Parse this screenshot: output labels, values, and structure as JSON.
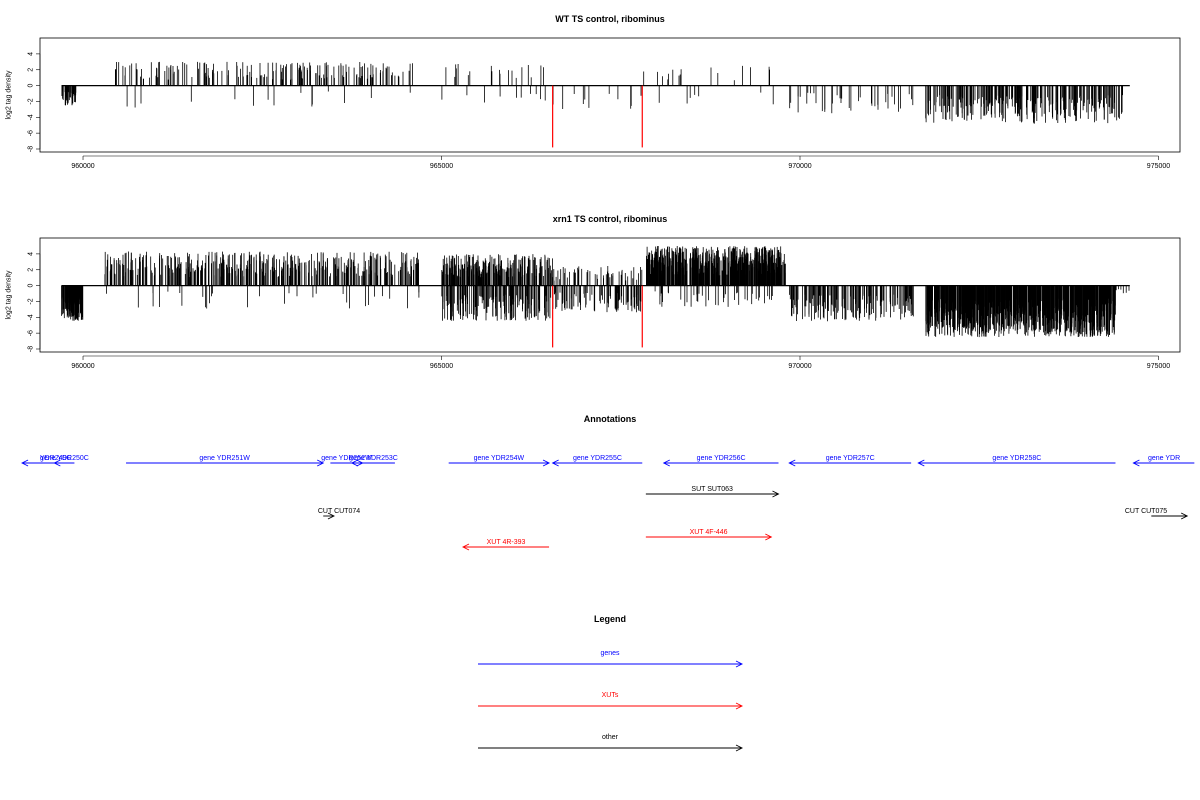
{
  "chart_data": [
    {
      "type": "bar",
      "title": "WT TS control, ribominus",
      "ylabel": "log2 tag density",
      "xlim": [
        959400,
        975300
      ],
      "ylim": [
        -8,
        5.5
      ],
      "yticks": [
        4,
        2,
        0,
        -2,
        -4,
        -6,
        -8
      ],
      "xticks": [
        960000,
        965000,
        970000,
        975000
      ],
      "highlight_color": "#ff0000",
      "highlights": [
        {
          "x": 966550,
          "value": -7.8
        },
        {
          "x": 967800,
          "value": -7.8
        }
      ],
      "regions": [
        {
          "from": 959700,
          "to": 959900,
          "sign": -1,
          "density": 3,
          "max": 2.5
        },
        {
          "from": 960450,
          "to": 964600,
          "sign": 1,
          "density": 0.6,
          "max": 3.0
        },
        {
          "from": 960450,
          "to": 964600,
          "sign": -1,
          "density": 0.05,
          "max": 2.8
        },
        {
          "from": 965000,
          "to": 966450,
          "sign": 1,
          "density": 0.18,
          "max": 2.8
        },
        {
          "from": 965000,
          "to": 966450,
          "sign": -1,
          "density": 0.1,
          "max": 2.6
        },
        {
          "from": 966550,
          "to": 967800,
          "sign": -1,
          "density": 0.12,
          "max": 3.0
        },
        {
          "from": 967800,
          "to": 969700,
          "sign": 1,
          "density": 0.12,
          "max": 2.5
        },
        {
          "from": 967800,
          "to": 969700,
          "sign": -1,
          "density": 0.05,
          "max": 2.5
        },
        {
          "from": 969850,
          "to": 971600,
          "sign": -1,
          "density": 0.3,
          "max": 3.5
        },
        {
          "from": 971750,
          "to": 974500,
          "sign": -1,
          "density": 1.4,
          "max": 4.8
        }
      ]
    },
    {
      "type": "bar",
      "title": "xrn1 TS control, ribominus",
      "ylabel": "log2 tag density",
      "xlim": [
        959400,
        975300
      ],
      "ylim": [
        -8,
        5.5
      ],
      "yticks": [
        4,
        2,
        0,
        -2,
        -4,
        -6,
        -8
      ],
      "xticks": [
        960000,
        965000,
        970000,
        975000
      ],
      "highlight_color": "#ff0000",
      "highlights": [
        {
          "x": 966550,
          "value": -7.8
        },
        {
          "x": 967800,
          "value": -7.8
        }
      ],
      "regions": [
        {
          "from": 959700,
          "to": 960000,
          "sign": -1,
          "density": 5,
          "max": 4.5
        },
        {
          "from": 960300,
          "to": 964700,
          "sign": 1,
          "density": 1.3,
          "max": 4.3
        },
        {
          "from": 960300,
          "to": 964700,
          "sign": -1,
          "density": 0.1,
          "max": 3.0
        },
        {
          "from": 965000,
          "to": 966550,
          "sign": 1,
          "density": 2.2,
          "max": 4.0
        },
        {
          "from": 965000,
          "to": 966550,
          "sign": -1,
          "density": 1.6,
          "max": 4.5
        },
        {
          "from": 966550,
          "to": 967800,
          "sign": 1,
          "density": 0.6,
          "max": 2.5
        },
        {
          "from": 966550,
          "to": 967800,
          "sign": -1,
          "density": 1.0,
          "max": 3.5
        },
        {
          "from": 967850,
          "to": 969800,
          "sign": 1,
          "density": 4.0,
          "max": 5.0
        },
        {
          "from": 967850,
          "to": 969800,
          "sign": -1,
          "density": 0.3,
          "max": 2.8
        },
        {
          "from": 969850,
          "to": 971600,
          "sign": -1,
          "density": 1.3,
          "max": 4.5
        },
        {
          "from": 971750,
          "to": 974400,
          "sign": -1,
          "density": 4.5,
          "max": 6.5
        },
        {
          "from": 974400,
          "to": 974600,
          "sign": -1,
          "density": 0.5,
          "max": 1.2
        }
      ]
    }
  ],
  "annotations": {
    "title": "Annotations",
    "colors": {
      "gene": "#0000ff",
      "xut": "#ff0000",
      "other": "#000000"
    },
    "features": [
      {
        "label": "YDR249C",
        "kind": "gene",
        "from": 959150,
        "to": 959680,
        "strand": "-",
        "row": 0
      },
      {
        "label": "gene YDR250C",
        "kind": "gene",
        "from": 959600,
        "to": 959880,
        "strand": "-",
        "row": 0
      },
      {
        "label": "gene YDR251W",
        "kind": "gene",
        "from": 960600,
        "to": 963350,
        "strand": "+",
        "row": 0
      },
      {
        "label": "gene YDR252W",
        "kind": "gene",
        "from": 963450,
        "to": 963900,
        "strand": "+",
        "row": 0
      },
      {
        "label": "gene YDR253C",
        "kind": "gene",
        "from": 963750,
        "to": 964350,
        "strand": "-",
        "row": 0
      },
      {
        "label": "gene YDR254W",
        "kind": "gene",
        "from": 965100,
        "to": 966500,
        "strand": "+",
        "row": 0
      },
      {
        "label": "gene YDR255C",
        "kind": "gene",
        "from": 966550,
        "to": 967800,
        "strand": "-",
        "row": 0
      },
      {
        "label": "gene YDR256C",
        "kind": "gene",
        "from": 968100,
        "to": 969700,
        "strand": "-",
        "row": 0
      },
      {
        "label": "gene YDR257C",
        "kind": "gene",
        "from": 969850,
        "to": 971550,
        "strand": "-",
        "row": 0
      },
      {
        "label": "gene YDR258C",
        "kind": "gene",
        "from": 971650,
        "to": 974400,
        "strand": "-",
        "row": 0
      },
      {
        "label": "gene YDR",
        "kind": "gene",
        "from": 974650,
        "to": 975500,
        "strand": "-",
        "row": 0
      },
      {
        "label": "SUT SUT063",
        "kind": "other",
        "from": 967850,
        "to": 969700,
        "strand": "+",
        "row": 1
      },
      {
        "label": "CUT CUT074",
        "kind": "other",
        "from": 963350,
        "to": 963500,
        "strand": "+",
        "row": 2
      },
      {
        "label": "CUT CUT075",
        "kind": "other",
        "from": 974900,
        "to": 975400,
        "strand": "+",
        "row": 2
      },
      {
        "label": "XUT 4R-393",
        "kind": "xut",
        "from": 965300,
        "to": 966500,
        "strand": "-",
        "row": 4
      },
      {
        "label": "XUT 4F-446",
        "kind": "xut",
        "from": 967850,
        "to": 969600,
        "strand": "+",
        "row": 3
      }
    ]
  },
  "legend": {
    "title": "Legend",
    "items": [
      {
        "label": "genes",
        "color": "#0000ff"
      },
      {
        "label": "XUTs",
        "color": "#ff0000"
      },
      {
        "label": "other",
        "color": "#000000"
      }
    ]
  }
}
